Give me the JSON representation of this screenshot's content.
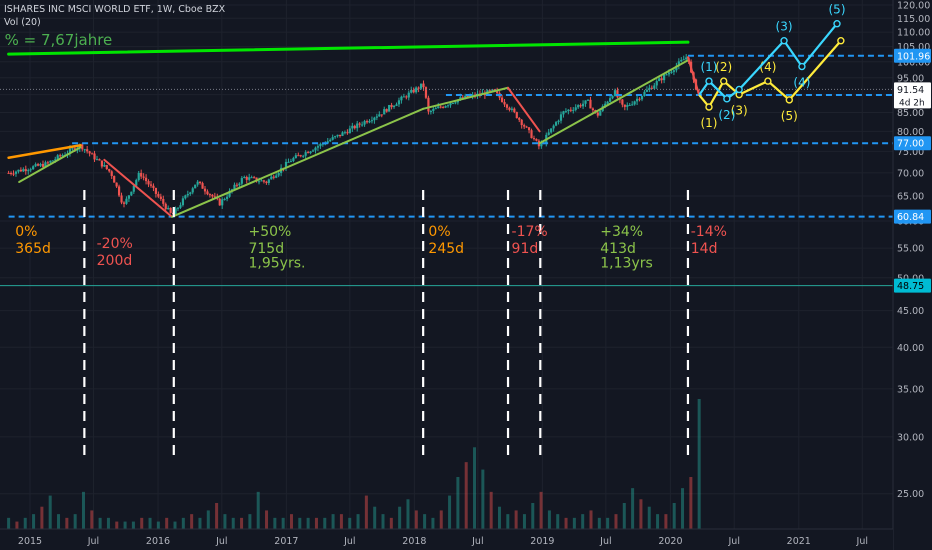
{
  "header": {
    "title": "ISHARES INC MSCI WORLD ETF, 1W, Cboe BZX",
    "volume_label": "Vol (20)"
  },
  "colors": {
    "background": "#131722",
    "grid": "#1e222d",
    "up": "#26a69a",
    "down": "#ef5350",
    "level": "#2196f3",
    "green_trend": "#00e600",
    "orange": "#ff9800",
    "wave_cyan": "#3ad7ff",
    "wave_yellow": "#ffeb3b",
    "teal_line": "#26a69a",
    "text": "#d1d4dc"
  },
  "chart_data": {
    "type": "candlestick",
    "x_axis": {
      "start": "2015-01-01",
      "end": "2021-09-01",
      "ticks": [
        {
          "date": "2015-01-01",
          "label": "2015"
        },
        {
          "date": "2015-07-01",
          "label": "Jul"
        },
        {
          "date": "2016-01-01",
          "label": "2016"
        },
        {
          "date": "2016-07-01",
          "label": "Jul"
        },
        {
          "date": "2017-01-01",
          "label": "2017"
        },
        {
          "date": "2017-07-01",
          "label": "Jul"
        },
        {
          "date": "2018-01-01",
          "label": "2018"
        },
        {
          "date": "2018-07-01",
          "label": "Jul"
        },
        {
          "date": "2019-01-01",
          "label": "2019"
        },
        {
          "date": "2019-07-01",
          "label": "Jul"
        },
        {
          "date": "2020-01-01",
          "label": "2020"
        },
        {
          "date": "2020-07-01",
          "label": "Jul"
        },
        {
          "date": "2021-01-01",
          "label": "2021"
        },
        {
          "date": "2021-07-01",
          "label": "Jul"
        }
      ]
    },
    "y_axis": {
      "scale": "log",
      "min": 23.2,
      "max": 120,
      "ticks": [
        120,
        115,
        110,
        105,
        100,
        95,
        90,
        85,
        80,
        75,
        70,
        65,
        60,
        55,
        50,
        45,
        40,
        35,
        30,
        25
      ],
      "tick_labels": [
        "120.00",
        "115.00",
        "110.00",
        "105.00",
        "100.00",
        "95.00",
        "90.00",
        "85.00",
        "80.00",
        "75.00",
        "70.00",
        "65.00",
        "60.00",
        "55.00",
        "50.00",
        "45.00",
        "40.00",
        "35.00",
        "30.00",
        "25.00"
      ]
    },
    "price_anchors": [
      [
        "2014-11-01",
        70
      ],
      [
        "2015-02-15",
        72
      ],
      [
        "2015-05-25",
        76.5
      ],
      [
        "2015-08-20",
        70
      ],
      [
        "2015-09-25",
        63
      ],
      [
        "2015-11-10",
        70
      ],
      [
        "2016-02-10",
        61
      ],
      [
        "2016-04-20",
        68
      ],
      [
        "2016-06-25",
        63.5
      ],
      [
        "2016-09-01",
        69
      ],
      [
        "2016-11-05",
        68
      ],
      [
        "2017-01-15",
        73
      ],
      [
        "2017-06-01",
        79
      ],
      [
        "2017-10-01",
        85
      ],
      [
        "2018-01-26",
        93
      ],
      [
        "2018-02-10",
        85
      ],
      [
        "2018-05-01",
        88.5
      ],
      [
        "2018-08-15",
        91
      ],
      [
        "2018-10-20",
        84
      ],
      [
        "2018-12-24",
        76
      ],
      [
        "2019-03-01",
        85
      ],
      [
        "2019-05-10",
        88
      ],
      [
        "2019-06-05",
        84
      ],
      [
        "2019-07-25",
        91
      ],
      [
        "2019-08-20",
        86
      ],
      [
        "2019-10-01",
        89
      ],
      [
        "2019-12-31",
        97
      ],
      [
        "2020-02-20",
        101.96
      ],
      [
        "2020-03-02",
        95
      ],
      [
        "2020-03-23",
        89.9
      ]
    ],
    "volume": {
      "values": [
        3,
        2,
        3,
        4,
        6,
        9,
        4,
        3,
        4,
        10,
        5,
        3,
        3,
        2,
        2,
        2,
        3,
        3,
        2,
        3,
        2,
        3,
        4,
        3,
        5,
        7,
        4,
        3,
        3,
        4,
        10,
        5,
        3,
        3,
        4,
        3,
        3,
        3,
        3,
        4,
        4,
        3,
        4,
        9,
        6,
        4,
        3,
        6,
        8,
        5,
        4,
        3,
        5,
        9,
        14,
        18,
        22,
        16,
        10,
        6,
        4,
        5,
        4,
        7,
        10,
        5,
        4,
        3,
        3,
        4,
        5,
        3,
        3,
        4,
        7,
        11,
        8,
        6,
        4,
        4,
        7,
        11,
        14,
        35
      ],
      "max": 35
    },
    "horizontal_levels": [
      {
        "price": 101.96,
        "label": "101.96",
        "from": "2020-02-20"
      },
      {
        "price": 89.9,
        "label": "89.90",
        "from": "2018-04-01"
      },
      {
        "price": 77.0,
        "label": "77.00",
        "from": "2015-05-01"
      },
      {
        "price": 60.84,
        "label": "60.84",
        "from": "2014-11-01"
      }
    ],
    "current_price": {
      "price": 91.54,
      "label": "91.54",
      "countdown": "4d 2h"
    },
    "teal_level": {
      "price": 48.75,
      "label": "48.75"
    },
    "trend_lines": [
      {
        "color": "green_trend",
        "from": [
          "2014-11-01",
          102.5
        ],
        "to": [
          "2020-02-20",
          106.5
        ],
        "width": 3
      },
      {
        "color": "orange",
        "from": [
          "2014-11-01",
          73.5
        ],
        "to": [
          "2015-05-25",
          76.5
        ],
        "width": 2.5
      },
      {
        "color": "olive",
        "from": [
          "2014-12-01",
          68
        ],
        "to": [
          "2015-05-25",
          76
        ],
        "width": 2
      },
      {
        "color": "down",
        "from": [
          "2015-08-01",
          73
        ],
        "to": [
          "2016-02-10",
          60.8
        ],
        "width": 2
      },
      {
        "color": "olive",
        "from": [
          "2016-02-10",
          60.8
        ],
        "to": [
          "2018-01-26",
          86
        ],
        "width": 2
      },
      {
        "color": "olive",
        "from": [
          "2018-01-26",
          86
        ],
        "to": [
          "2018-09-25",
          92
        ],
        "width": 2
      },
      {
        "color": "down",
        "from": [
          "2018-09-25",
          92
        ],
        "to": [
          "2018-12-24",
          80
        ],
        "width": 2
      },
      {
        "color": "olive",
        "from": [
          "2018-12-24",
          77
        ],
        "to": [
          "2020-02-20",
          100.5
        ],
        "width": 2
      },
      {
        "color": "down",
        "from": [
          "2020-02-20",
          101.5
        ],
        "to": [
          "2020-03-23",
          89.9
        ],
        "width": 2
      }
    ],
    "vertical_markers": [
      "2015-06-05",
      "2016-02-15",
      "2018-01-26",
      "2018-09-25",
      "2018-12-26",
      "2020-02-20"
    ],
    "annotations": [
      {
        "lines": [
          "0%",
          "365d"
        ],
        "color": "orange",
        "date": "2014-11-20",
        "price": 57.2
      },
      {
        "lines": [
          "-20%",
          "200d"
        ],
        "color": "down",
        "date": "2015-07-10",
        "price": 55.0
      },
      {
        "lines": [
          "+50%",
          "715d"
        ],
        "color": "olive",
        "date": "2016-09-15",
        "price": 57.2
      },
      {
        "lines": [
          "1,95yrs."
        ],
        "color": "olive",
        "date": "2016-09-15",
        "price": 51.7
      },
      {
        "lines": [
          "0%",
          "245d"
        ],
        "color": "orange",
        "date": "2018-02-10",
        "price": 57.2
      },
      {
        "lines": [
          "-17%",
          "91d"
        ],
        "color": "down",
        "date": "2018-10-05",
        "price": 57.2
      },
      {
        "lines": [
          "+34%",
          "413d"
        ],
        "color": "olive",
        "date": "2019-06-15",
        "price": 57.2
      },
      {
        "lines": [
          "1,13yrs"
        ],
        "color": "olive",
        "date": "2019-06-15",
        "price": 51.7
      },
      {
        "lines": [
          "-14%",
          "14d"
        ],
        "color": "down",
        "date": "2020-02-28",
        "price": 57.2
      }
    ],
    "top_left_label": {
      "text": "% = 7,67jahre",
      "date": "2014-11-01",
      "price": 105.5
    },
    "wave_cyan": {
      "points": [
        [
          "2020-03-23",
          89.9
        ],
        [
          "2020-04-20",
          94
        ],
        [
          "2020-06-10",
          88.8
        ],
        [
          "2020-07-15",
          91.5
        ],
        [
          "2020-11-20",
          107
        ],
        [
          "2021-01-10",
          98.5
        ],
        [
          "2021-04-20",
          113
        ]
      ],
      "labels": [
        {
          "text": "(1)",
          "index": 1,
          "pos": "above"
        },
        {
          "text": "(2)",
          "index": 2,
          "pos": "below"
        },
        {
          "text": "(3)",
          "index": 4,
          "pos": "above"
        },
        {
          "text": "(4)",
          "index": 5,
          "pos": "below"
        },
        {
          "text": "(5)",
          "index": 6,
          "pos": "above"
        }
      ]
    },
    "wave_yellow": {
      "points": [
        [
          "2020-03-23",
          89.9
        ],
        [
          "2020-04-20",
          86.5
        ],
        [
          "2020-06-01",
          94
        ],
        [
          "2020-07-15",
          90
        ],
        [
          "2020-10-05",
          94
        ],
        [
          "2020-12-05",
          88.5
        ],
        [
          "2021-05-01",
          107
        ]
      ],
      "labels": [
        {
          "text": "(1)",
          "index": 1,
          "pos": "below"
        },
        {
          "text": "(2)",
          "index": 2,
          "pos": "above"
        },
        {
          "text": "(3)",
          "index": 3,
          "pos": "below"
        },
        {
          "text": "(4)",
          "index": 4,
          "pos": "above"
        },
        {
          "text": "(5)",
          "index": 5,
          "pos": "below"
        }
      ]
    }
  }
}
